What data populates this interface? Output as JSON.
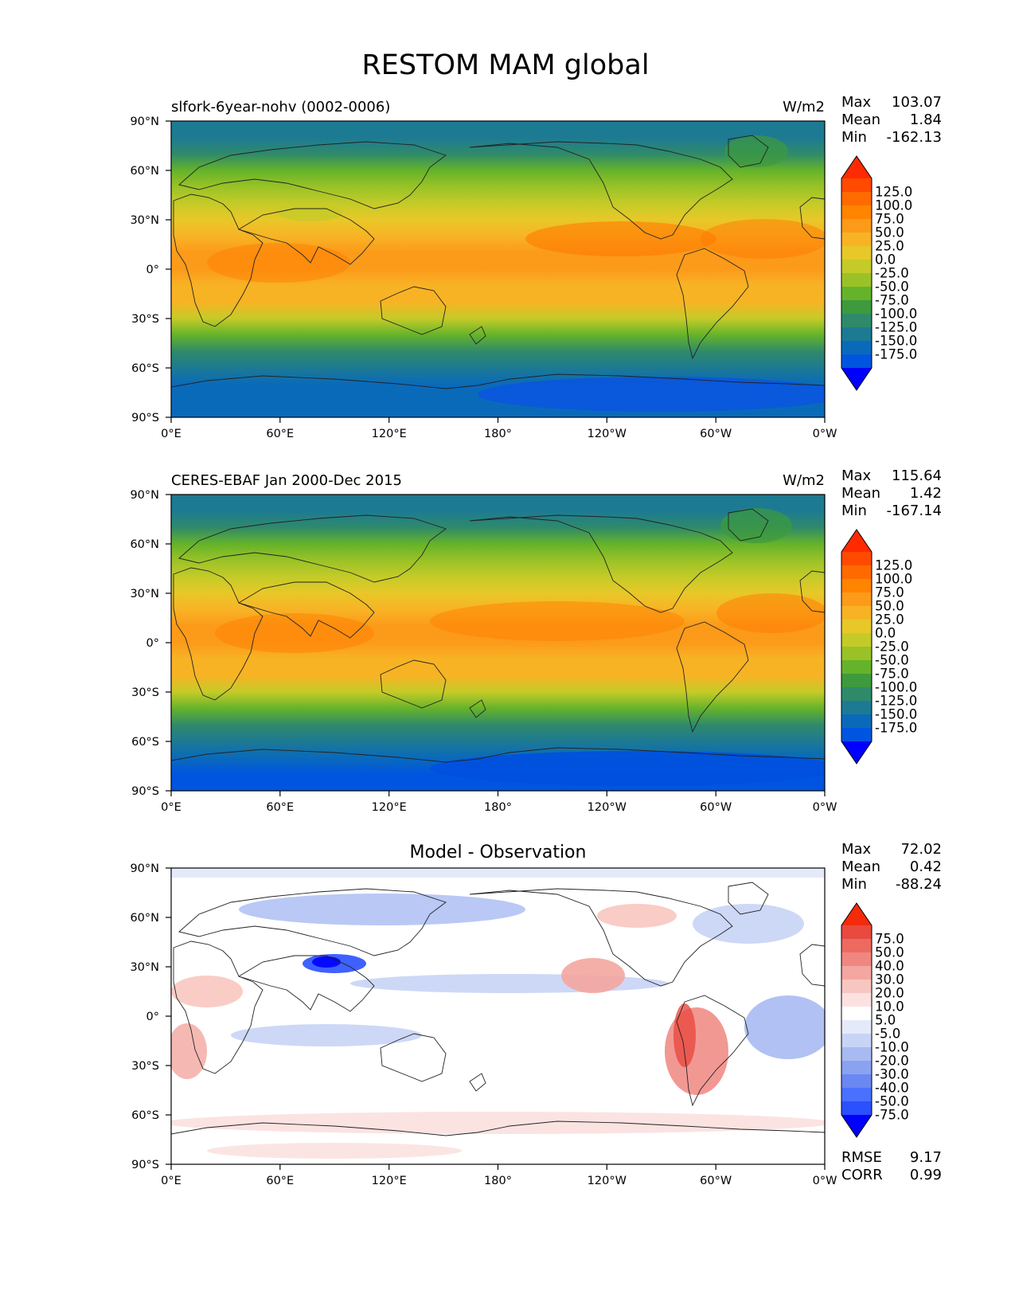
{
  "title": "RESTOM MAM global",
  "x_ticks": [
    "0°E",
    "60°E",
    "120°E",
    "180°",
    "120°W",
    "60°W",
    "0°W"
  ],
  "y_ticks": [
    "90°N",
    "60°N",
    "30°N",
    "0°",
    "30°S",
    "60°S",
    "90°S"
  ],
  "stat_labels": {
    "max": "Max",
    "mean": "Mean",
    "min": "Min",
    "rmse": "RMSE",
    "corr": "CORR"
  },
  "colors": {
    "abs_levels": [
      "#0000ff",
      "#0055e0",
      "#0a6aba",
      "#1d7a93",
      "#2f8a6a",
      "#3d9a3d",
      "#65b32a",
      "#9ac227",
      "#c4cb28",
      "#e8c828",
      "#f8b325",
      "#fc9a1a",
      "#ff8400",
      "#ff6a00",
      "#ff4a00",
      "#ff2a00"
    ],
    "diff_levels": [
      "#0000ff",
      "#2a50ff",
      "#4a70ff",
      "#6a88f2",
      "#8aa2f0",
      "#a8baf2",
      "#c8d4f6",
      "#e4eafa",
      "#ffffff",
      "#fbe2e0",
      "#f8c6c0",
      "#f4a6a0",
      "#f08680",
      "#ec6a60",
      "#e84a40",
      "#f42a0a"
    ]
  },
  "chart_data": [
    {
      "type": "heatmap",
      "panel": "model",
      "left_title": "slfork-6year-nohv (0002-0006)",
      "units": "W/m2",
      "xlim": [
        0,
        360
      ],
      "ylim": [
        -90,
        90
      ],
      "stats": {
        "max": "103.07",
        "mean": "1.84",
        "min": "-162.13"
      },
      "colorbar_labels": [
        "125.0",
        "100.0",
        "75.0",
        "50.0",
        "25.0",
        "0.0",
        "-25.0",
        "-50.0",
        "-75.0",
        "-100.0",
        "-125.0",
        "-150.0",
        "-175.0"
      ],
      "zonal_profile": {
        "lat": [
          90,
          80,
          70,
          60,
          50,
          40,
          30,
          20,
          10,
          0,
          -10,
          -20,
          -30,
          -40,
          -50,
          -60,
          -70,
          -80,
          -90
        ],
        "values": [
          -120,
          -110,
          -80,
          -50,
          -20,
          10,
          40,
          60,
          75,
          80,
          70,
          50,
          20,
          -30,
          -80,
          -120,
          -130,
          -150,
          -150
        ]
      }
    },
    {
      "type": "heatmap",
      "panel": "observation",
      "left_title": "CERES-EBAF Jan 2000-Dec 2015",
      "units": "W/m2",
      "xlim": [
        0,
        360
      ],
      "ylim": [
        -90,
        90
      ],
      "stats": {
        "max": "115.64",
        "mean": "1.42",
        "min": "-167.14"
      },
      "colorbar_labels": [
        "125.0",
        "100.0",
        "75.0",
        "50.0",
        "25.0",
        "0.0",
        "-25.0",
        "-50.0",
        "-75.0",
        "-100.0",
        "-125.0",
        "-150.0",
        "-175.0"
      ],
      "zonal_profile": {
        "lat": [
          90,
          80,
          70,
          60,
          50,
          40,
          30,
          20,
          10,
          0,
          -10,
          -20,
          -30,
          -40,
          -50,
          -60,
          -70,
          -80,
          -90
        ],
        "values": [
          -118,
          -108,
          -78,
          -48,
          -18,
          12,
          42,
          62,
          77,
          80,
          72,
          52,
          22,
          -28,
          -82,
          -125,
          -140,
          -160,
          -160
        ]
      }
    },
    {
      "type": "heatmap",
      "panel": "difference",
      "center_title": "Model - Observation",
      "units": "",
      "xlim": [
        0,
        360
      ],
      "ylim": [
        -90,
        90
      ],
      "stats": {
        "max": "72.02",
        "mean": "0.42",
        "min": "-88.24"
      },
      "metrics": {
        "rmse": "9.17",
        "corr": "0.99"
      },
      "colorbar_labels": [
        "75.0",
        "50.0",
        "40.0",
        "30.0",
        "20.0",
        "10.0",
        "5.0",
        "-5.0",
        "-10.0",
        "-20.0",
        "-30.0",
        "-40.0",
        "-50.0",
        "-75.0"
      ]
    }
  ]
}
